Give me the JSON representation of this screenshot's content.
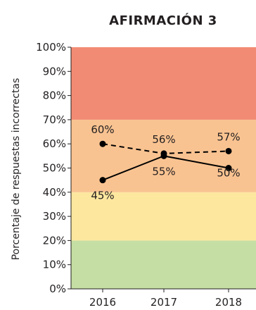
{
  "chart_data": {
    "type": "line",
    "title": "AFIRMACIÓN 3",
    "ylabel": "Porcentaje de respuestas incorrectas",
    "xlabel": "",
    "categories": [
      "2016",
      "2017",
      "2018"
    ],
    "ylim": [
      0,
      100
    ],
    "yticks": [
      "0%",
      "10%",
      "20%",
      "30%",
      "40%",
      "50%",
      "60%",
      "70%",
      "80%",
      "90%",
      "100%"
    ],
    "bands": [
      {
        "from": 0,
        "to": 20,
        "color": "#c5dea3"
      },
      {
        "from": 20,
        "to": 40,
        "color": "#fde79f"
      },
      {
        "from": 40,
        "to": 70,
        "color": "#f9c391"
      },
      {
        "from": 70,
        "to": 100,
        "color": "#f28b73"
      }
    ],
    "series": [
      {
        "style": "dashed",
        "values": [
          60,
          56,
          57
        ],
        "labels": [
          "60%",
          "56%",
          "57%"
        ]
      },
      {
        "style": "solid",
        "values": [
          45,
          55,
          50
        ],
        "labels": [
          "45%",
          "55%",
          "50%"
        ]
      }
    ]
  }
}
